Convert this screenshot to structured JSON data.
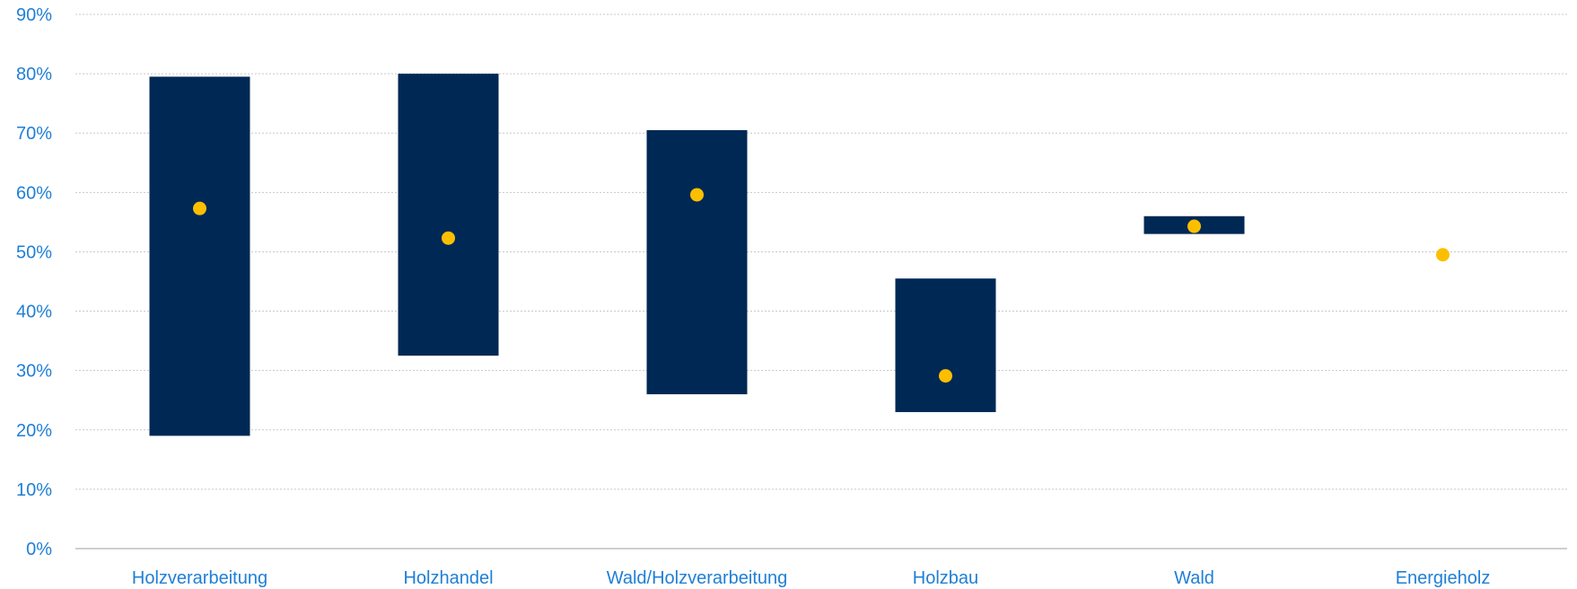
{
  "chart_data": {
    "type": "bar",
    "subtype": "floating-range-with-point",
    "categories": [
      "Holzverarbeitung",
      "Holzhandel",
      "Wald/Holzverarbeitung",
      "Holzbau",
      "Wald",
      "Energieholz"
    ],
    "series": [
      {
        "values": [
          [
            19,
            79.5
          ],
          [
            32.5,
            80
          ],
          [
            26,
            70.5
          ],
          [
            23,
            45.5
          ],
          [
            53,
            56
          ],
          null
        ]
      },
      {
        "values": [
          57.3,
          52.3,
          59.6,
          29.1,
          54.3,
          49.5
        ]
      }
    ],
    "y_ticks": [
      "0%",
      "10%",
      "20%",
      "30%",
      "40%",
      "50%",
      "60%",
      "70%",
      "80%",
      "90%"
    ],
    "ylim": [
      0,
      90
    ],
    "grid": true,
    "colors": {
      "range": "#002855",
      "point": "#fcbf00",
      "text": "#1f7fd6",
      "grid": "#c8c8c8"
    }
  }
}
